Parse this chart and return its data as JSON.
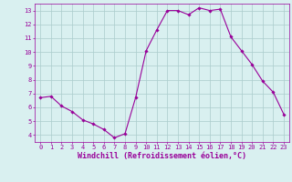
{
  "x": [
    0,
    1,
    2,
    3,
    4,
    5,
    6,
    7,
    8,
    9,
    10,
    11,
    12,
    13,
    14,
    15,
    16,
    17,
    18,
    19,
    20,
    21,
    22,
    23
  ],
  "y": [
    6.7,
    6.8,
    6.1,
    5.7,
    5.1,
    4.8,
    4.4,
    3.8,
    4.1,
    6.7,
    10.1,
    11.6,
    13.0,
    13.0,
    12.7,
    13.2,
    13.0,
    13.1,
    11.1,
    10.1,
    9.1,
    7.9,
    7.1,
    5.5
  ],
  "line_color": "#990099",
  "marker": "D",
  "marker_size": 1.8,
  "background_color": "#d9f0f0",
  "grid_color": "#aacccc",
  "xlabel": "Windchill (Refroidissement éolien,°C)",
  "xlabel_color": "#990099",
  "tick_color": "#990099",
  "xlim": [
    -0.5,
    23.5
  ],
  "ylim": [
    3.5,
    13.5
  ],
  "yticks": [
    4,
    5,
    6,
    7,
    8,
    9,
    10,
    11,
    12,
    13
  ],
  "xticks": [
    0,
    1,
    2,
    3,
    4,
    5,
    6,
    7,
    8,
    9,
    10,
    11,
    12,
    13,
    14,
    15,
    16,
    17,
    18,
    19,
    20,
    21,
    22,
    23
  ],
  "tick_fontsize": 5.0,
  "xlabel_fontsize": 6.0,
  "linewidth": 0.8
}
